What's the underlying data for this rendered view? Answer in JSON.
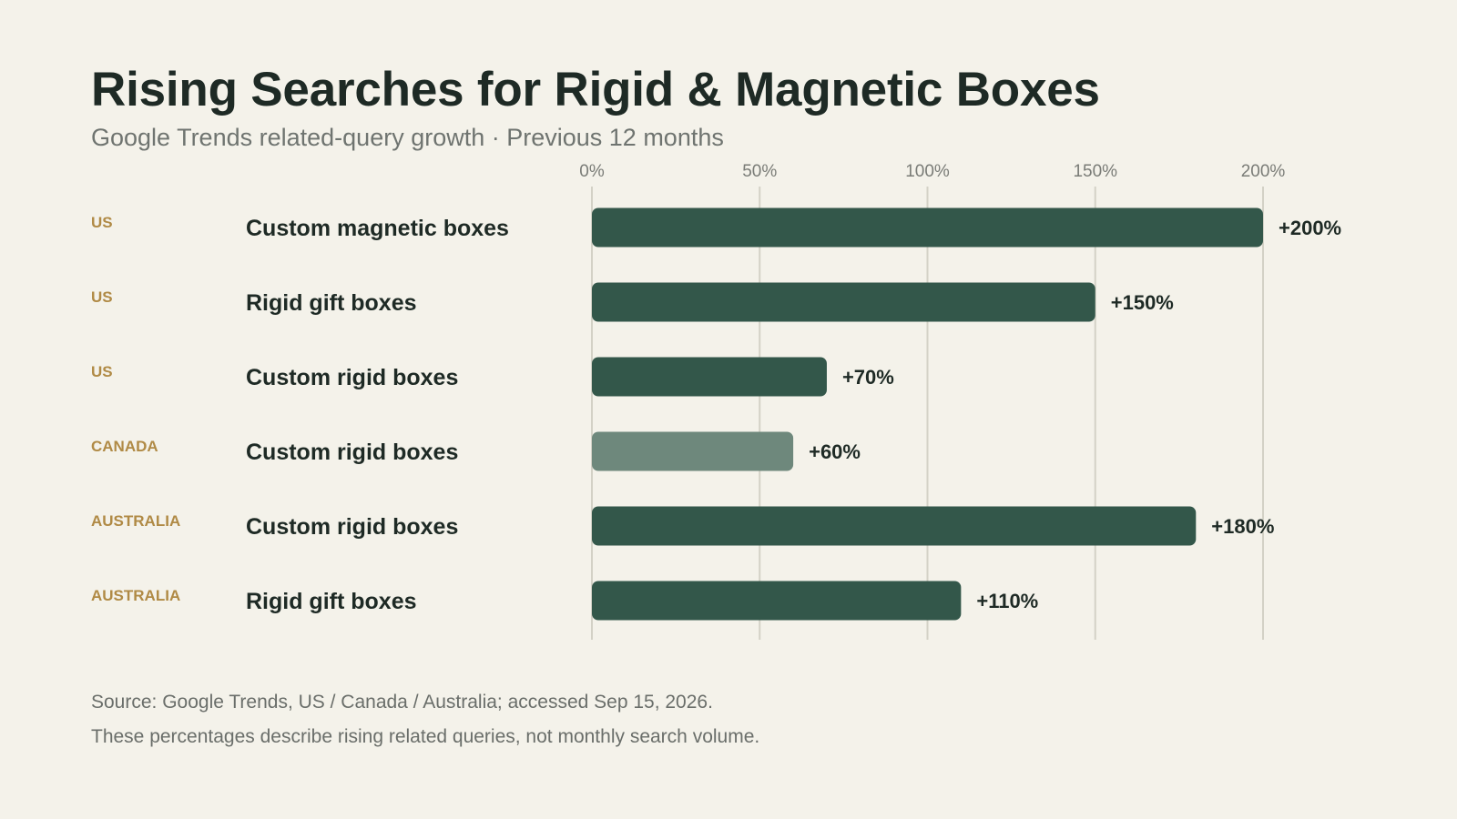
{
  "header": {
    "title": "Rising Searches for Rigid & Magnetic Boxes",
    "subtitle": "Google Trends related-query growth · Previous 12 months"
  },
  "footer": {
    "source": "Source: Google Trends, US / Canada / Australia; accessed Sep 15, 2026.",
    "note": "These percentages describe rising related queries, not monthly search volume."
  },
  "colors": {
    "bar_primary": "#33574a",
    "bar_highlight": "#6e887c",
    "region_text": "#b08a45",
    "gridline": "#d3d1c6"
  },
  "chart_data": {
    "type": "bar",
    "orientation": "horizontal",
    "title": "Rising Searches for Rigid & Magnetic Boxes",
    "subtitle": "Google Trends related-query growth · Previous 12 months",
    "xlim": [
      0,
      200
    ],
    "x_ticks": [
      0,
      50,
      100,
      150,
      200
    ],
    "x_tick_labels": [
      "0%",
      "50%",
      "100%",
      "150%",
      "200%"
    ],
    "grid": true,
    "rows": [
      {
        "region": "US",
        "query": "Custom magnetic boxes",
        "value": 200,
        "label": "+200%",
        "highlight": false
      },
      {
        "region": "US",
        "query": "Rigid gift boxes",
        "value": 150,
        "label": "+150%",
        "highlight": false
      },
      {
        "region": "US",
        "query": "Custom rigid boxes",
        "value": 70,
        "label": "+70%",
        "highlight": false
      },
      {
        "region": "CANADA",
        "query": "Custom rigid boxes",
        "value": 60,
        "label": "+60%",
        "highlight": true
      },
      {
        "region": "AUSTRALIA",
        "query": "Custom rigid boxes",
        "value": 180,
        "label": "+180%",
        "highlight": false
      },
      {
        "region": "AUSTRALIA",
        "query": "Rigid gift boxes",
        "value": 110,
        "label": "+110%",
        "highlight": false
      }
    ]
  }
}
